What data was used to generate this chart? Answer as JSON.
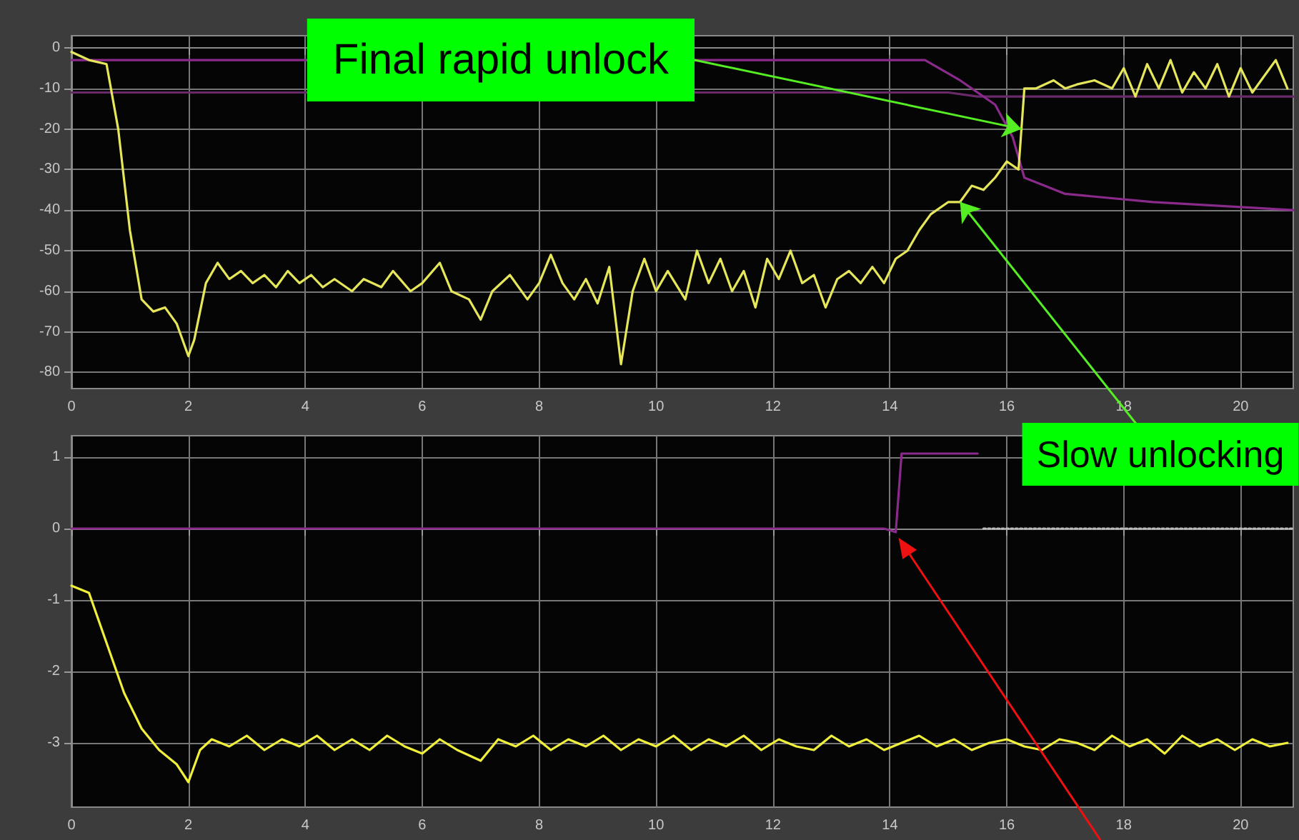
{
  "chart_data": [
    {
      "type": "line",
      "xlim": [
        0,
        20.9
      ],
      "xticks": [
        0,
        2,
        4,
        6,
        8,
        10,
        12,
        14,
        16,
        18,
        20
      ],
      "ylim": [
        -84,
        3
      ],
      "yticks": [
        0,
        -10,
        -20,
        -30,
        -40,
        -50,
        -60,
        -70,
        -80
      ],
      "grid": true,
      "marker": "none",
      "line_style": "solid",
      "annotations": [
        {
          "text": "Final rapid unlock",
          "x": 16.25,
          "y": -20
        },
        {
          "text": "Slow unlocking",
          "x": 15.2,
          "y": -38
        }
      ],
      "series": [
        {
          "color": "#6a2a6a",
          "x": [
            0,
            15,
            15.5,
            16.2,
            20.9
          ],
          "values": [
            -11,
            -11,
            -12,
            -12,
            -12
          ]
        },
        {
          "color": "#8a2a8a",
          "x": [
            0,
            14.6,
            15.2,
            15.8,
            16.1,
            16.3,
            17,
            18.5,
            20.9
          ],
          "values": [
            -3,
            -3,
            -8,
            -14,
            -22,
            -32,
            -36,
            -38,
            -40
          ]
        },
        {
          "color": "#e6e65a",
          "x": [
            0,
            0.3,
            0.6,
            0.8,
            1.0,
            1.2,
            1.4,
            1.6,
            1.8,
            2.0,
            2.1,
            2.3,
            2.5,
            2.7,
            2.9,
            3.1,
            3.3,
            3.5,
            3.7,
            3.9,
            4.1,
            4.3,
            4.5,
            4.8,
            5.0,
            5.3,
            5.5,
            5.8,
            6.0,
            6.3,
            6.5,
            6.8,
            7.0,
            7.2,
            7.5,
            7.8,
            8.0,
            8.2,
            8.4,
            8.6,
            8.8,
            9.0,
            9.2,
            9.4,
            9.6,
            9.8,
            10.0,
            10.2,
            10.5,
            10.7,
            10.9,
            11.1,
            11.3,
            11.5,
            11.7,
            11.9,
            12.1,
            12.3,
            12.5,
            12.7,
            12.9,
            13.1,
            13.3,
            13.5,
            13.7,
            13.9,
            14.1,
            14.3,
            14.5,
            14.7,
            15.0,
            15.2,
            15.4,
            15.6,
            15.8,
            16.0,
            16.2,
            16.3,
            16.5,
            16.8,
            17.0,
            17.2,
            17.5,
            17.8,
            18.0,
            18.2,
            18.4,
            18.6,
            18.8,
            19.0,
            19.2,
            19.4,
            19.6,
            19.8,
            20.0,
            20.2,
            20.4,
            20.6,
            20.8
          ],
          "values": [
            -1,
            -3,
            -4,
            -20,
            -45,
            -62,
            -65,
            -64,
            -68,
            -76,
            -72,
            -58,
            -53,
            -57,
            -55,
            -58,
            -56,
            -59,
            -55,
            -58,
            -56,
            -59,
            -57,
            -60,
            -57,
            -59,
            -55,
            -60,
            -58,
            -53,
            -60,
            -62,
            -67,
            -60,
            -56,
            -62,
            -58,
            -51,
            -58,
            -62,
            -57,
            -63,
            -54,
            -78,
            -60,
            -52,
            -60,
            -55,
            -62,
            -50,
            -58,
            -52,
            -60,
            -55,
            -64,
            -52,
            -57,
            -50,
            -58,
            -56,
            -64,
            -57,
            -55,
            -58,
            -54,
            -58,
            -52,
            -50,
            -45,
            -41,
            -38,
            -38,
            -34,
            -35,
            -32,
            -28,
            -30,
            -10,
            -10,
            -8,
            -10,
            -9,
            -8,
            -10,
            -5,
            -12,
            -4,
            -10,
            -3,
            -11,
            -6,
            -10,
            -4,
            -12,
            -5,
            -11,
            -7,
            -3,
            -10
          ]
        }
      ]
    },
    {
      "type": "line",
      "xlim": [
        0,
        20.9
      ],
      "xticks": [
        0,
        2,
        4,
        6,
        8,
        10,
        12,
        14,
        16,
        18,
        20
      ],
      "ylim": [
        -3.9,
        1.3
      ],
      "yticks": [
        1,
        0,
        -1,
        -2,
        -3
      ],
      "grid": true,
      "marker": "none",
      "series": [
        {
          "color": "#8a2a8a",
          "line_style": "solid",
          "x": [
            0,
            13.9,
            14.1,
            14.2,
            15.5
          ],
          "values": [
            0,
            0,
            -0.05,
            1.05,
            1.05
          ]
        },
        {
          "color": "#bbbbbb",
          "line_style": "dotted",
          "x": [
            15.6,
            20.9
          ],
          "values": [
            0,
            0
          ]
        },
        {
          "color": "#f0f03c",
          "line_style": "solid",
          "x": [
            0,
            0.3,
            0.6,
            0.9,
            1.2,
            1.5,
            1.8,
            2.0,
            2.2,
            2.4,
            2.7,
            3.0,
            3.3,
            3.6,
            3.9,
            4.2,
            4.5,
            4.8,
            5.1,
            5.4,
            5.7,
            6.0,
            6.3,
            6.6,
            7.0,
            7.3,
            7.6,
            7.9,
            8.2,
            8.5,
            8.8,
            9.1,
            9.4,
            9.7,
            10.0,
            10.3,
            10.6,
            10.9,
            11.2,
            11.5,
            11.8,
            12.1,
            12.4,
            12.7,
            13.0,
            13.3,
            13.6,
            13.9,
            14.2,
            14.5,
            14.8,
            15.1,
            15.4,
            15.7,
            16.0,
            16.3,
            16.6,
            16.9,
            17.2,
            17.5,
            17.8,
            18.1,
            18.4,
            18.7,
            19.0,
            19.3,
            19.6,
            19.9,
            20.2,
            20.5,
            20.8
          ],
          "values": [
            -0.8,
            -0.9,
            -1.6,
            -2.3,
            -2.8,
            -3.1,
            -3.3,
            -3.55,
            -3.1,
            -2.95,
            -3.05,
            -2.9,
            -3.1,
            -2.95,
            -3.05,
            -2.9,
            -3.1,
            -2.95,
            -3.1,
            -2.9,
            -3.05,
            -3.15,
            -2.95,
            -3.1,
            -3.25,
            -2.95,
            -3.05,
            -2.9,
            -3.1,
            -2.95,
            -3.05,
            -2.9,
            -3.1,
            -2.95,
            -3.05,
            -2.9,
            -3.1,
            -2.95,
            -3.05,
            -2.9,
            -3.1,
            -2.95,
            -3.05,
            -3.1,
            -2.9,
            -3.05,
            -2.95,
            -3.1,
            -3.0,
            -2.9,
            -3.05,
            -2.95,
            -3.1,
            -3.0,
            -2.95,
            -3.05,
            -3.1,
            -2.95,
            -3.0,
            -3.1,
            -2.9,
            -3.05,
            -2.95,
            -3.15,
            -2.9,
            -3.05,
            -2.95,
            -3.1,
            -2.95,
            -3.05,
            -3.0
          ]
        }
      ]
    }
  ]
}
